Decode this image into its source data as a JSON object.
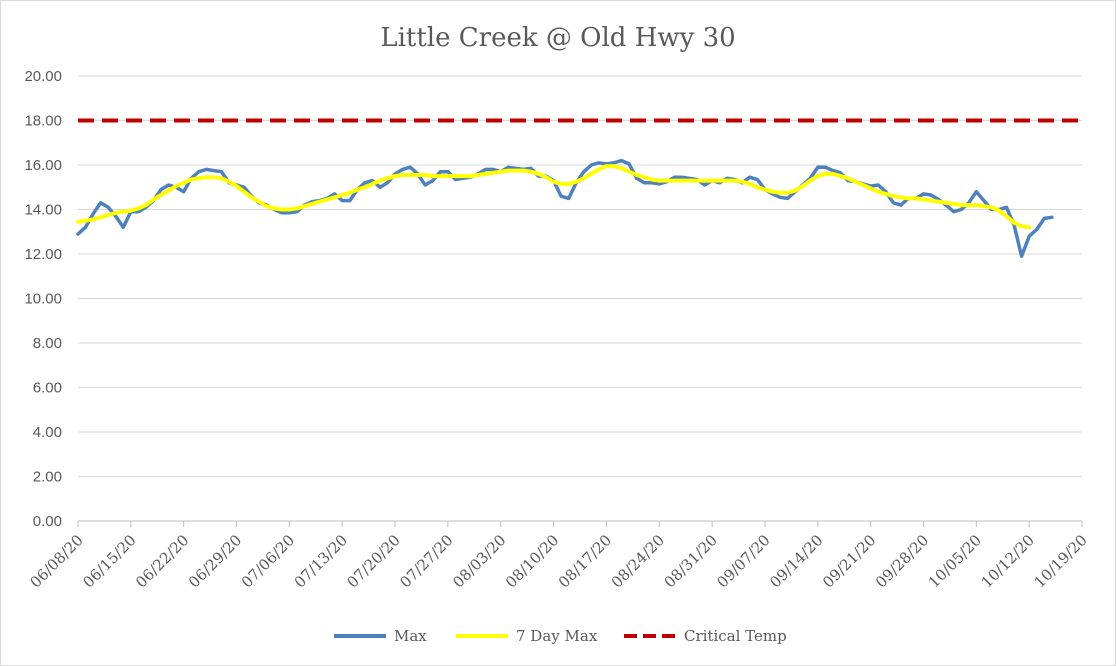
{
  "chart_data": {
    "type": "line",
    "title": "Little Creek @ Old Hwy 30",
    "xlabel": "",
    "ylabel": "",
    "ylim": [
      0,
      20
    ],
    "y_ticks": [
      "0.00",
      "2.00",
      "4.00",
      "6.00",
      "8.00",
      "10.00",
      "12.00",
      "14.00",
      "16.00",
      "18.00",
      "20.00"
    ],
    "x_tick_labels": [
      "06/08/20",
      "06/15/20",
      "06/22/20",
      "06/29/20",
      "07/06/20",
      "07/13/20",
      "07/20/20",
      "07/27/20",
      "08/03/20",
      "08/10/20",
      "08/17/20",
      "08/24/20",
      "08/31/20",
      "09/07/20",
      "09/14/20",
      "09/21/20",
      "09/28/20",
      "10/05/20",
      "10/12/20",
      "10/19/20"
    ],
    "x_start": "2020-06-08",
    "x_end": "2020-10-19",
    "grid": true,
    "legend_position": "bottom",
    "series": [
      {
        "name": "Max",
        "color": "#4f81bd",
        "style": "solid",
        "start": "2020-06-08",
        "values": [
          12.9,
          13.2,
          13.8,
          14.3,
          14.1,
          13.7,
          13.2,
          13.9,
          13.9,
          14.1,
          14.4,
          14.9,
          15.1,
          15.0,
          14.8,
          15.4,
          15.7,
          15.8,
          15.75,
          15.7,
          15.2,
          15.1,
          15.0,
          14.6,
          14.3,
          14.2,
          14.0,
          13.85,
          13.85,
          13.9,
          14.2,
          14.35,
          14.4,
          14.5,
          14.7,
          14.4,
          14.4,
          14.9,
          15.2,
          15.3,
          15.0,
          15.2,
          15.6,
          15.8,
          15.9,
          15.6,
          15.1,
          15.3,
          15.7,
          15.7,
          15.35,
          15.4,
          15.45,
          15.6,
          15.8,
          15.8,
          15.7,
          15.9,
          15.85,
          15.8,
          15.85,
          15.5,
          15.5,
          15.3,
          14.6,
          14.5,
          15.2,
          15.7,
          16.0,
          16.1,
          16.05,
          16.1,
          16.2,
          16.05,
          15.4,
          15.2,
          15.2,
          15.15,
          15.25,
          15.45,
          15.45,
          15.4,
          15.35,
          15.1,
          15.3,
          15.2,
          15.4,
          15.35,
          15.2,
          15.45,
          15.35,
          14.9,
          14.7,
          14.55,
          14.5,
          14.8,
          15.1,
          15.4,
          15.9,
          15.9,
          15.75,
          15.65,
          15.3,
          15.25,
          15.15,
          15.05,
          15.1,
          14.8,
          14.3,
          14.2,
          14.5,
          14.5,
          14.7,
          14.65,
          14.45,
          14.2,
          13.9,
          14.0,
          14.3,
          14.8,
          14.4,
          14.0,
          14.0,
          14.1,
          13.3,
          11.9,
          12.8,
          13.1,
          13.6,
          13.65
        ]
      },
      {
        "name": "7 Day Max",
        "color": "#ffff00",
        "style": "solid",
        "start": "2020-06-08",
        "values": [
          13.45,
          13.5,
          13.55,
          13.65,
          13.75,
          13.85,
          13.9,
          13.95,
          14.05,
          14.2,
          14.45,
          14.65,
          14.85,
          15.05,
          15.2,
          15.35,
          15.4,
          15.45,
          15.45,
          15.4,
          15.25,
          15.05,
          14.8,
          14.55,
          14.35,
          14.15,
          14.05,
          14.0,
          14.0,
          14.05,
          14.15,
          14.25,
          14.35,
          14.45,
          14.55,
          14.65,
          14.75,
          14.9,
          15.0,
          15.15,
          15.3,
          15.4,
          15.5,
          15.55,
          15.55,
          15.55,
          15.55,
          15.5,
          15.5,
          15.5,
          15.5,
          15.5,
          15.5,
          15.55,
          15.6,
          15.65,
          15.7,
          15.75,
          15.75,
          15.75,
          15.7,
          15.6,
          15.45,
          15.25,
          15.15,
          15.15,
          15.25,
          15.4,
          15.6,
          15.8,
          15.95,
          15.95,
          15.85,
          15.7,
          15.55,
          15.45,
          15.35,
          15.3,
          15.3,
          15.3,
          15.3,
          15.3,
          15.3,
          15.3,
          15.3,
          15.3,
          15.3,
          15.3,
          15.25,
          15.15,
          15.0,
          14.9,
          14.8,
          14.75,
          14.75,
          14.85,
          15.05,
          15.3,
          15.5,
          15.6,
          15.6,
          15.5,
          15.4,
          15.25,
          15.1,
          14.95,
          14.8,
          14.7,
          14.6,
          14.55,
          14.5,
          14.5,
          14.45,
          14.4,
          14.35,
          14.3,
          14.25,
          14.2,
          14.2,
          14.2,
          14.15,
          14.1,
          13.95,
          13.7,
          13.4,
          13.25,
          13.2
        ]
      },
      {
        "name": "Critical Temp",
        "color": "#c00000",
        "style": "dashed",
        "constant": 18
      }
    ]
  }
}
